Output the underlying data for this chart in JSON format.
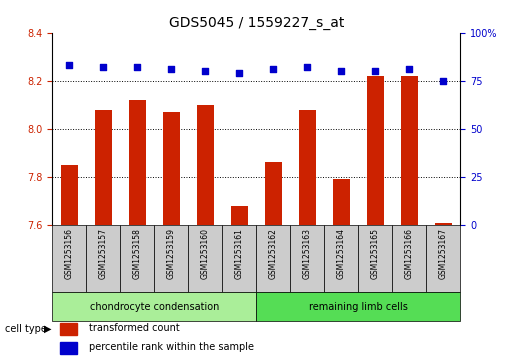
{
  "title": "GDS5045 / 1559227_s_at",
  "samples": [
    "GSM1253156",
    "GSM1253157",
    "GSM1253158",
    "GSM1253159",
    "GSM1253160",
    "GSM1253161",
    "GSM1253162",
    "GSM1253163",
    "GSM1253164",
    "GSM1253165",
    "GSM1253166",
    "GSM1253167"
  ],
  "transformed_count": [
    7.85,
    8.08,
    8.12,
    8.07,
    8.1,
    7.68,
    7.86,
    8.08,
    7.79,
    8.22,
    8.22,
    7.61
  ],
  "percentile_rank": [
    83,
    82,
    82,
    81,
    80,
    79,
    81,
    82,
    80,
    80,
    81,
    75
  ],
  "ylim_left": [
    7.6,
    8.4
  ],
  "ylim_right": [
    0,
    100
  ],
  "yticks_left": [
    7.6,
    7.8,
    8.0,
    8.2,
    8.4
  ],
  "yticks_right": [
    0,
    25,
    50,
    75,
    100
  ],
  "bar_color": "#cc2200",
  "dot_color": "#0000cc",
  "cell_type_groups": [
    {
      "label": "chondrocyte condensation",
      "start": 0,
      "end": 6,
      "color": "#aaee99"
    },
    {
      "label": "remaining limb cells",
      "start": 6,
      "end": 12,
      "color": "#55dd55"
    }
  ],
  "legend_items": [
    {
      "label": "transformed count",
      "color": "#cc2200"
    },
    {
      "label": "percentile rank within the sample",
      "color": "#0000cc"
    }
  ],
  "cell_type_label": "cell type",
  "sample_box_color": "#cccccc",
  "plot_bg": "#ffffff",
  "title_fontsize": 10,
  "tick_fontsize": 7,
  "sample_fontsize": 5.5,
  "group_fontsize": 7,
  "legend_fontsize": 7
}
